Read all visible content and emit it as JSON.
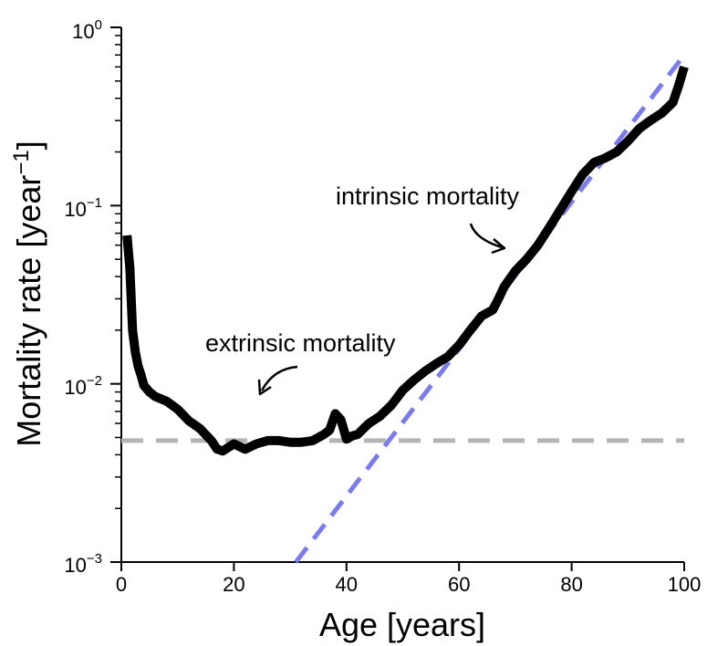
{
  "chart_data": {
    "type": "line",
    "title": "",
    "xlabel": "Age [years]",
    "ylabel": "Mortality rate [year",
    "ylabel_sup": "−1",
    "ylabel_close": "]",
    "x_scale": "linear",
    "y_scale": "log",
    "xlim": [
      0,
      100
    ],
    "ylim": [
      0.001,
      1
    ],
    "x_ticks": [
      "0",
      "20",
      "40",
      "60",
      "80",
      "100"
    ],
    "y_ticks": [
      {
        "base": "10",
        "exp": "0"
      },
      {
        "base": "10",
        "exp": "−1"
      },
      {
        "base": "10",
        "exp": "−2"
      },
      {
        "base": "10",
        "exp": "−3"
      }
    ],
    "grid": false,
    "series": [
      {
        "name": "",
        "color": "#000000",
        "style": "solid",
        "x": [
          1,
          1.5,
          2,
          2.5,
          3,
          3.5,
          4,
          5,
          6,
          8,
          10,
          12,
          14,
          16,
          17,
          18,
          20,
          22,
          24,
          26,
          28,
          30,
          32,
          34,
          36,
          37,
          38,
          39,
          40,
          41,
          42,
          43,
          44,
          46,
          48,
          50,
          52,
          54,
          56,
          58,
          60,
          62,
          64,
          66,
          67,
          68,
          70,
          72,
          74,
          76,
          78,
          80,
          82,
          84,
          86,
          88,
          90,
          92,
          94,
          96,
          98,
          99,
          100
        ],
        "y": [
          0.068,
          0.045,
          0.02,
          0.015,
          0.0125,
          0.0112,
          0.0098,
          0.009,
          0.0085,
          0.008,
          0.0072,
          0.0062,
          0.0056,
          0.0048,
          0.0043,
          0.0042,
          0.0046,
          0.0043,
          0.0046,
          0.0048,
          0.0048,
          0.0047,
          0.0047,
          0.0048,
          0.0052,
          0.0055,
          0.0068,
          0.0063,
          0.0049,
          0.0051,
          0.0052,
          0.0056,
          0.006,
          0.0066,
          0.0076,
          0.0092,
          0.0105,
          0.0118,
          0.013,
          0.0142,
          0.0165,
          0.02,
          0.024,
          0.026,
          0.03,
          0.035,
          0.043,
          0.05,
          0.06,
          0.075,
          0.095,
          0.12,
          0.15,
          0.175,
          0.185,
          0.2,
          0.23,
          0.27,
          0.3,
          0.33,
          0.38,
          0.47,
          0.6
        ]
      },
      {
        "name": "",
        "color": "#7b7bf0",
        "style": "dashed",
        "x": [
          31,
          100
        ],
        "y": [
          0.001,
          0.7
        ]
      },
      {
        "name": "",
        "color": "#b5b5b5",
        "style": "dashed",
        "x": [
          0,
          100
        ],
        "y": [
          0.0048,
          0.0048
        ]
      }
    ],
    "annotations": [
      {
        "text": "intrinsic mortality"
      },
      {
        "text": "extrinsic mortality"
      }
    ]
  }
}
